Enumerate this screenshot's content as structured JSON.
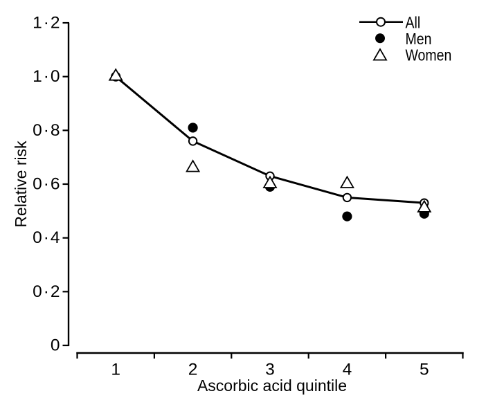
{
  "chart_data": {
    "type": "line",
    "x": [
      1,
      2,
      3,
      4,
      5
    ],
    "series": [
      {
        "name": "All",
        "marker": "open-circle",
        "line": true,
        "values": [
          1.0,
          0.76,
          0.63,
          0.55,
          0.53
        ]
      },
      {
        "name": "Men",
        "marker": "filled-circle",
        "line": false,
        "values": [
          1.0,
          0.81,
          0.59,
          0.48,
          0.49
        ]
      },
      {
        "name": "Women",
        "marker": "open-triangle",
        "line": false,
        "values": [
          1.0,
          0.66,
          0.6,
          0.6,
          0.51
        ]
      }
    ],
    "xlabel": "Ascorbic acid quintile",
    "ylabel": "Relative risk",
    "ylim": [
      0,
      1.2
    ],
    "ytick_values": [
      0,
      0.2,
      0.4,
      0.6,
      0.8,
      1.0,
      1.2
    ],
    "ytick_labels": [
      "0",
      "0·2",
      "0·4",
      "0·6",
      "0·8",
      "1·0",
      "1·2"
    ],
    "xtick_labels": [
      "1",
      "2",
      "3",
      "4",
      "5"
    ],
    "legend": {
      "position": "top-right",
      "items": [
        "All",
        "Men",
        "Women"
      ]
    },
    "grid": false,
    "colors": {
      "foreground": "#000000",
      "background": "#ffffff"
    }
  }
}
